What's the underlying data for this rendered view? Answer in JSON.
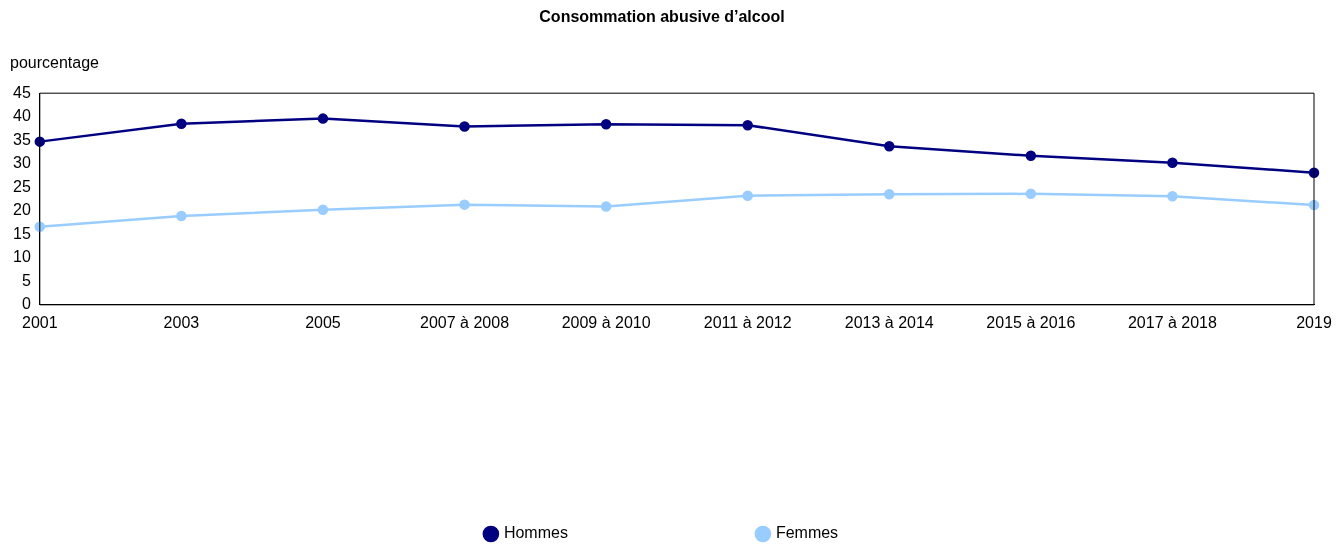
{
  "chart_data": {
    "type": "line",
    "title": "Consommation abusive d’alcool",
    "ylabel": "pourcentage",
    "categories": [
      "2001",
      "2003",
      "2005",
      "2007 à 2008",
      "2009 à 2010",
      "2011 à 2012",
      "2013 à 2014",
      "2015 à 2016",
      "2017 à 2018",
      "2019"
    ],
    "series": [
      {
        "name": "Hommes",
        "color": "#000080",
        "values": [
          34.7,
          38.5,
          39.6,
          37.9,
          38.4,
          38.2,
          33.7,
          31.7,
          30.2,
          28.1
        ]
      },
      {
        "name": "Femmes",
        "color": "#99ccff",
        "values": [
          16.6,
          18.9,
          20.2,
          21.3,
          20.9,
          23.2,
          23.5,
          23.6,
          23.1,
          21.2
        ]
      }
    ],
    "ylim": [
      0,
      45
    ],
    "yticks": [
      0,
      5,
      10,
      15,
      20,
      25,
      30,
      35,
      40,
      45
    ],
    "grid": false,
    "legend": "bottom",
    "marker": "circle",
    "line_style": "solid"
  }
}
